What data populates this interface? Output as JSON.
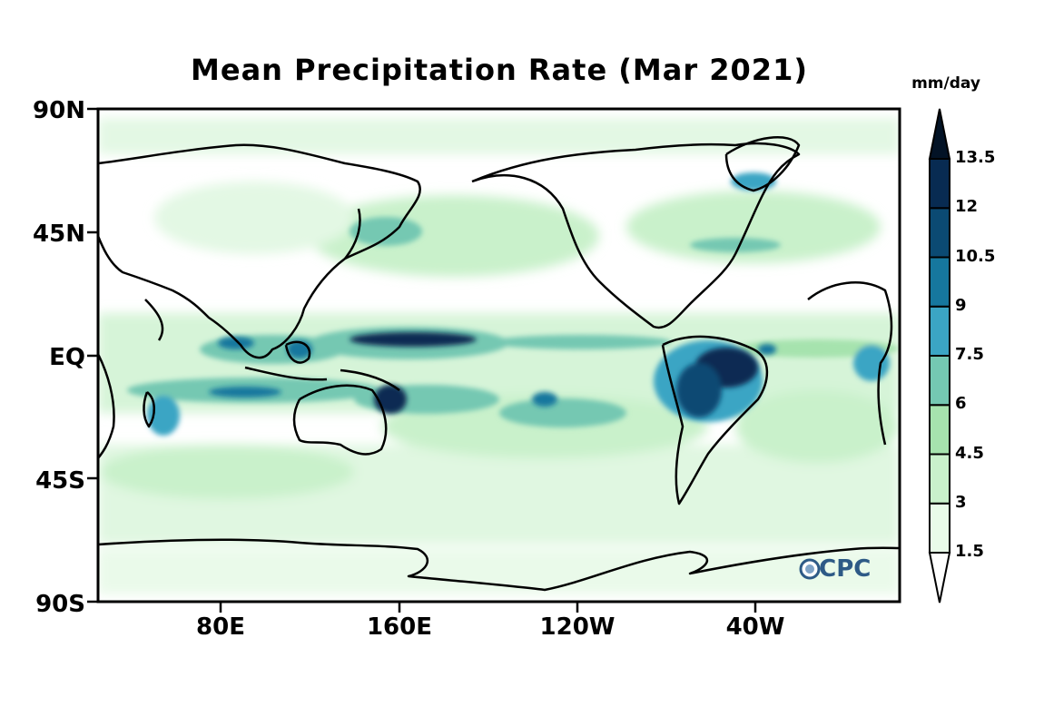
{
  "title": "Mean Precipitation Rate (Mar 2021)",
  "units": "mm/day",
  "y_axis_labels": [
    "90N",
    "45N",
    "EQ",
    "45S",
    "90S"
  ],
  "x_axis_labels": [
    "80E",
    "160E",
    "120W",
    "40W"
  ],
  "colorbar": {
    "levels": [
      "1.5",
      "3",
      "4.5",
      "6",
      "7.5",
      "9",
      "10.5",
      "12",
      "13.5"
    ],
    "colors": [
      "#ffffff",
      "#e9fbe9",
      "#c9f1cb",
      "#a6e3ae",
      "#74c8b2",
      "#3ba5c4",
      "#16779e",
      "#0b4a73",
      "#082b52",
      "#031326"
    ]
  },
  "logo": "OCPC",
  "coastline_color": "#000000"
}
